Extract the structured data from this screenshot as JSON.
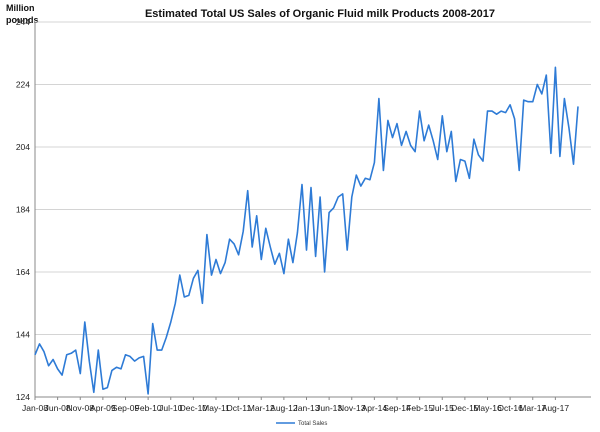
{
  "chart_data": {
    "type": "line",
    "title": "Estimated Total US Sales of Organic Fluid milk Products 2008-2017",
    "ylabel": "Million pounds",
    "ylabel_lines": [
      "Million",
      "pounds"
    ],
    "xlabel": "",
    "ylim": [
      124,
      244
    ],
    "yticks": [
      124,
      144,
      164,
      184,
      204,
      224,
      244
    ],
    "grid": "horizontal",
    "legend": "bottom-center",
    "x_tick_labels": [
      "Jan-08",
      "Jun-08",
      "Nov-08",
      "Apr-09",
      "Sep-09",
      "Feb-10",
      "Jul-10",
      "Dec-10",
      "May-11",
      "Oct-11",
      "Mar-12",
      "Aug-12",
      "Jan-13",
      "Jun-13",
      "Nov-13",
      "Apr-14",
      "Sep-14",
      "Feb-15",
      "Jul-15",
      "Dec-15",
      "May-16",
      "Oct-16",
      "Mar-17",
      "Aug-17"
    ],
    "series": [
      {
        "name": "Total Sales",
        "color": "#2e7bd6",
        "values": [
          137.5,
          141.0,
          138.5,
          134.0,
          136.0,
          133.0,
          131.0,
          137.5,
          138.0,
          139.0,
          131.5,
          148.0,
          135.5,
          125.5,
          139.0,
          126.5,
          127.0,
          132.5,
          133.5,
          133.0,
          137.5,
          137.0,
          135.5,
          136.5,
          137.0,
          125.0,
          147.5,
          139.0,
          139.0,
          143.0,
          148.0,
          154.0,
          163.0,
          156.0,
          156.5,
          162.0,
          164.5,
          154.0,
          176.0,
          163.0,
          168.0,
          163.5,
          167.0,
          174.5,
          173.0,
          169.5,
          177.0,
          190.0,
          172.0,
          182.0,
          168.0,
          178.0,
          172.0,
          166.5,
          170.0,
          163.5,
          174.5,
          167.0,
          176.5,
          192.0,
          171.0,
          191.0,
          169.0,
          188.0,
          164.0,
          183.0,
          184.5,
          188.0,
          189.0,
          171.0,
          188.0,
          195.0,
          191.5,
          194.0,
          193.5,
          199.0,
          219.5,
          196.5,
          212.5,
          207.0,
          211.5,
          204.5,
          209.0,
          204.5,
          202.5,
          215.5,
          206.0,
          211.0,
          206.0,
          200.0,
          214.0,
          202.5,
          209.0,
          193.0,
          200.0,
          199.5,
          194.0,
          206.5,
          201.5,
          199.5,
          215.5,
          215.5,
          214.5,
          215.5,
          215.0,
          217.5,
          213.0,
          196.5,
          219.0,
          218.5,
          218.5,
          224.0,
          221.0,
          227.0,
          202.0,
          229.5,
          201.0,
          219.5,
          210.0,
          198.5,
          217.0
        ]
      }
    ]
  }
}
